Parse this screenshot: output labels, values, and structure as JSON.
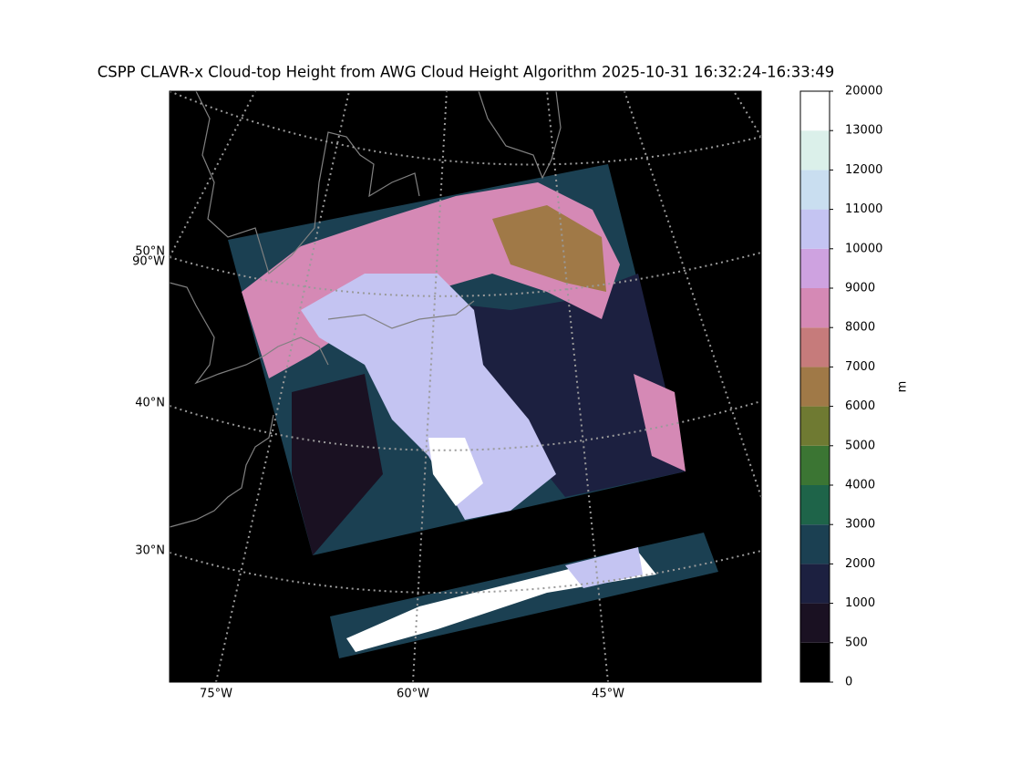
{
  "map": {
    "title": "CSPP CLAVR-x Cloud-top Height from AWG Cloud Height Algorithm 2025-10-31 16:32:24-16:33:49",
    "lat_labels": [
      "50°N",
      "40°N",
      "30°N"
    ],
    "lon_label_left": "90°W",
    "lon_labels": [
      "75°W",
      "60°W",
      "45°W"
    ],
    "colorbar": {
      "label": "m",
      "ticks": [
        0,
        500,
        1000,
        2000,
        3000,
        4000,
        5000,
        6000,
        7000,
        8000,
        9000,
        10000,
        11000,
        12000,
        13000,
        20000
      ],
      "colors": [
        "#000000",
        "#1a1122",
        "#1c2040",
        "#1b4052",
        "#1e6449",
        "#3b7533",
        "#6f7a32",
        "#a07947",
        "#c67b7b",
        "#d589b5",
        "#cea2e0",
        "#c4c4f2",
        "#c9def0",
        "#dbf0ea",
        "#ffffff"
      ]
    }
  }
}
